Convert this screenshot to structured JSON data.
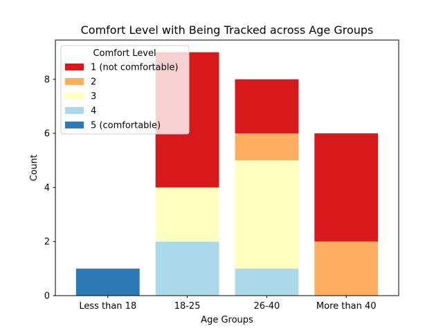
{
  "chart_data": {
    "type": "bar",
    "stacked": true,
    "title": "Comfort Level with Being Tracked across Age Groups",
    "xlabel": "Age Groups",
    "ylabel": "Count",
    "categories": [
      "Less than 18",
      "18-25",
      "26-40",
      "More than 40"
    ],
    "ylim": [
      0,
      9.45
    ],
    "yticks": [
      0,
      2,
      4,
      6,
      8
    ],
    "grid": false,
    "legend": {
      "title": "Comfort Level",
      "placement": "top-left"
    },
    "series": [
      {
        "name": "5 (comfortable)",
        "color": "#2c7bb6",
        "values": [
          1,
          0,
          0,
          0
        ]
      },
      {
        "name": "4",
        "color": "#abd9e9",
        "values": [
          0,
          2,
          1,
          0
        ]
      },
      {
        "name": "3",
        "color": "#ffffbf",
        "values": [
          0,
          2,
          4,
          0
        ]
      },
      {
        "name": "2",
        "color": "#fdae61",
        "values": [
          0,
          0,
          1,
          2
        ]
      },
      {
        "name": "1 (not comfortable)",
        "color": "#d7191c",
        "values": [
          0,
          5,
          2,
          4
        ]
      }
    ],
    "legend_order": [
      "1 (not comfortable)",
      "2",
      "3",
      "4",
      "5 (comfortable)"
    ]
  }
}
